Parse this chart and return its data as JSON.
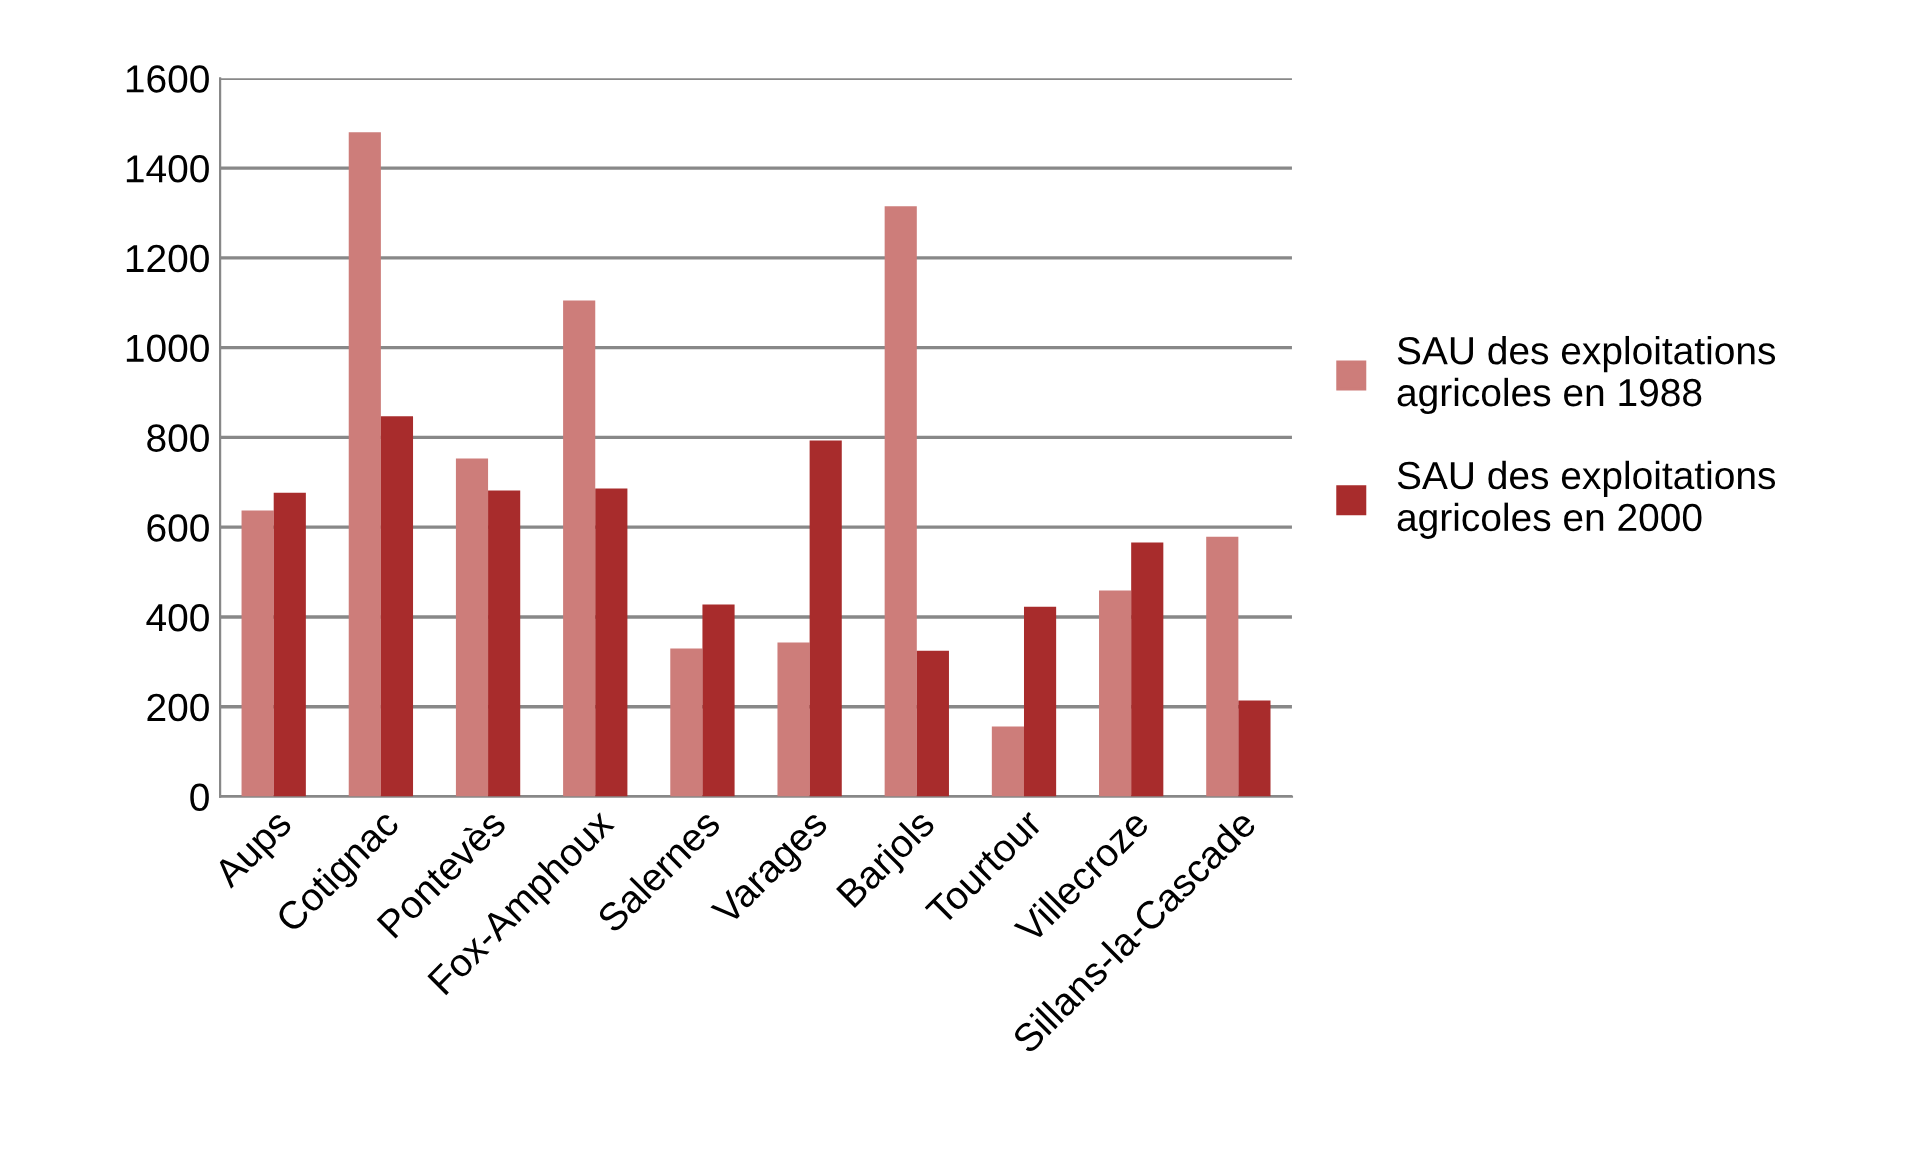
{
  "chart_data": {
    "type": "bar",
    "categories": [
      "Aups",
      "Cotignac",
      "Pontevès",
      "Fox-Amphoux",
      "Salernes",
      "Varages",
      "Barjols",
      "Tourtour",
      "Villecroze",
      "Sillans-la-Cascade"
    ],
    "series": [
      {
        "name": "SAU des exploitations agricoles en 1988",
        "color": "#cd7d7a",
        "values": [
          637,
          1480,
          753,
          1105,
          330,
          343,
          1315,
          156,
          459,
          579
        ]
      },
      {
        "name": "SAU des exploitations agricoles en 2000",
        "color": "#a82c2c",
        "values": [
          677,
          847,
          682,
          686,
          428,
          793,
          325,
          423,
          566,
          214
        ]
      }
    ],
    "ylim": [
      0,
      1600
    ],
    "yticks": [
      0,
      200,
      400,
      600,
      800,
      1000,
      1200,
      1400,
      1600
    ],
    "grid": "y",
    "legend": "right"
  }
}
